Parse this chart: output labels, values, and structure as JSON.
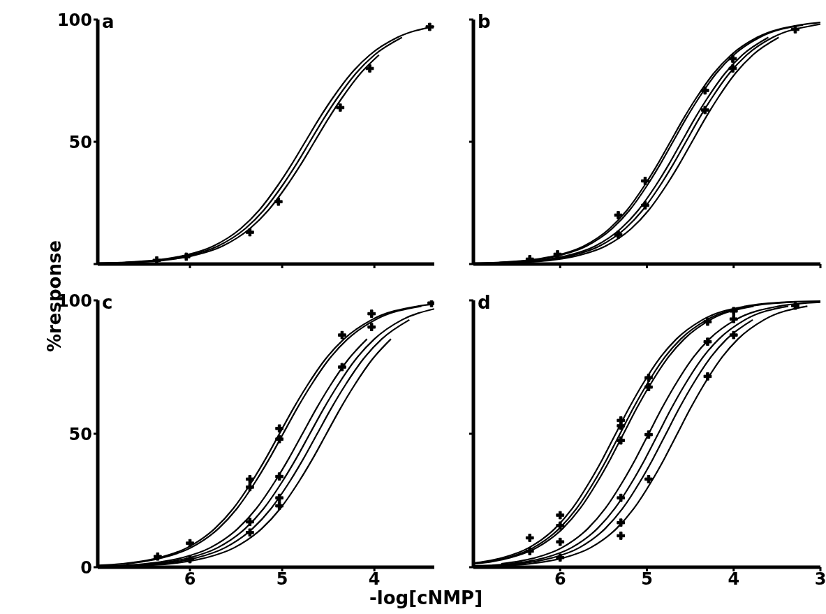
{
  "chart_data": [
    {
      "type": "line",
      "title": "a",
      "ylabel": "%response",
      "xlim": [
        7,
        3.35
      ],
      "xticks": [
        6,
        5,
        4
      ],
      "ylim": [
        0,
        100
      ],
      "yticks": [
        {
          "value": 0,
          "label": null
        },
        50,
        100
      ],
      "tick_labels": "y",
      "marker": "none",
      "series": [
        {
          "color": "#000000",
          "x": [
            7,
            6.75,
            6.45,
            6.25,
            6.05,
            5.75,
            5.45,
            5.25,
            5.05,
            4.9,
            4.75,
            4.6,
            4.45,
            4.25,
            4.05,
            3.75,
            3.35
          ],
          "values": [
            0.3,
            0.6,
            1.3,
            2.2,
            3.6,
            7.3,
            14.5,
            22,
            32,
            40.6,
            50,
            59.4,
            68,
            78,
            85.5,
            92.7,
            97.2
          ]
        },
        {
          "color": "#000000",
          "x": [
            6.7,
            6.4,
            6.2,
            6,
            5.7,
            5.4,
            5.2,
            5,
            4.85,
            4.7,
            4.55,
            4.4,
            4.2,
            4,
            3.7
          ],
          "values": [
            0.6,
            1.3,
            2.2,
            3.6,
            7.3,
            14.5,
            22,
            32,
            40.6,
            50,
            59.4,
            68,
            78,
            85.5,
            92.7
          ]
        },
        {
          "color": "#000000",
          "x": [
            7,
            6.65,
            6.35,
            6.15,
            5.95,
            5.65,
            5.35,
            5.15,
            4.95,
            4.8,
            4.65,
            4.5,
            4.35,
            4.15,
            3.95
          ],
          "values": [
            0.3,
            0.6,
            1.3,
            2.2,
            3.6,
            7.3,
            14.5,
            22,
            32,
            40.6,
            50,
            59.4,
            68,
            78,
            85.5
          ]
        },
        {
          "type": "scatter",
          "marker": "cross",
          "color": "#000000",
          "x": [
            6.36,
            6.04,
            5.35,
            5.04,
            4.37,
            4.05,
            3.4
          ],
          "values": [
            1.5,
            3,
            13,
            25.5,
            64,
            80,
            97
          ]
        }
      ]
    },
    {
      "type": "line",
      "title": "b",
      "xlim": [
        7,
        3
      ],
      "xticks": [
        6,
        5,
        4,
        3
      ],
      "ylim": [
        0,
        100
      ],
      "yticks": [
        0,
        50,
        100
      ],
      "tick_labels": false,
      "marker": "none",
      "series": [
        {
          "color": "#000000",
          "x": [
            7,
            6.73,
            6.43,
            6.23,
            6.03,
            5.73,
            5.43,
            5.23,
            5.03,
            4.88,
            4.73,
            4.58,
            4.43,
            4.23,
            4.03,
            3.73,
            3.23,
            3
          ],
          "values": [
            0.3,
            0.6,
            1.3,
            2.2,
            3.6,
            7.3,
            14.5,
            22,
            32,
            40.6,
            50,
            59.4,
            68,
            78,
            85.5,
            92.7,
            97.8,
            98.8
          ]
        },
        {
          "color": "#000000",
          "x": [
            6.7,
            6.4,
            6.2,
            6,
            5.7,
            5.4,
            5.2,
            5,
            4.85,
            4.7,
            4.55,
            4.4,
            4.2,
            4,
            3.7,
            3.2
          ],
          "values": [
            0.6,
            1.3,
            2.2,
            3.6,
            7.3,
            14.5,
            22,
            32,
            40.6,
            50,
            59.4,
            68,
            78,
            85.5,
            92.7,
            97.8
          ]
        },
        {
          "color": "#000000",
          "x": [
            7,
            6.6,
            6.3,
            6.1,
            5.9,
            5.6,
            5.3,
            5.1,
            4.9,
            4.75,
            4.6,
            4.45,
            4.3,
            4.1,
            3.9,
            3.6
          ],
          "values": [
            0.2,
            0.6,
            1.3,
            2.2,
            3.6,
            7.3,
            14.5,
            22,
            32,
            40.6,
            50,
            59.4,
            68,
            78,
            85.5,
            92.7
          ]
        },
        {
          "color": "#000000",
          "x": [
            6.55,
            6.25,
            6.05,
            5.85,
            5.55,
            5.25,
            5.05,
            4.85,
            4.7,
            4.55,
            4.4,
            4.25,
            4.05,
            3.85,
            3.55,
            3.05,
            3
          ],
          "values": [
            0.6,
            1.3,
            2.2,
            3.6,
            7.3,
            14.5,
            22,
            32,
            40.6,
            50,
            59.4,
            68,
            78,
            85.5,
            92.7,
            97.8,
            98.1
          ]
        },
        {
          "color": "#000000",
          "x": [
            7,
            6.48,
            6.18,
            5.98,
            5.78,
            5.48,
            5.18,
            4.98,
            4.78,
            4.63,
            4.48,
            4.33,
            4.18,
            3.98,
            3.78,
            3.48
          ],
          "values": [
            0.2,
            0.6,
            1.3,
            2.2,
            3.6,
            7.3,
            14.5,
            22,
            32,
            40.6,
            50,
            59.4,
            68,
            78,
            85.5,
            92.7
          ]
        },
        {
          "type": "scatter",
          "marker": "cross",
          "color": "#000000",
          "x": [
            6.35,
            6.03,
            5.33,
            5.33,
            5.02,
            5.02,
            4.33,
            4.33,
            4.01,
            4.01,
            3.29
          ],
          "values": [
            2,
            4,
            20,
            12,
            34,
            24,
            71,
            63,
            84,
            80,
            96
          ]
        }
      ]
    },
    {
      "type": "line",
      "title": "c",
      "xlabel": "-log[cNMP]",
      "xlim": [
        7,
        3.35
      ],
      "xticks": [
        6,
        5,
        4
      ],
      "ylim": [
        0,
        100
      ],
      "yticks": [
        0,
        50,
        100
      ],
      "marker": "none",
      "series": [
        {
          "color": "#000000",
          "x": [
            7,
            6.73,
            6.53,
            6.33,
            6.03,
            5.73,
            5.53,
            5.33,
            5.18,
            5.03,
            4.88,
            4.73,
            4.53,
            4.33,
            4.03,
            3.53,
            3.35
          ],
          "values": [
            0.7,
            1.3,
            2.2,
            3.6,
            7.3,
            14.5,
            22,
            32,
            40.6,
            50,
            59.4,
            68,
            78,
            85.5,
            92.7,
            97.8,
            98.6
          ]
        },
        {
          "color": "#000000",
          "x": [
            6.69,
            6.49,
            6.29,
            5.99,
            5.69,
            5.49,
            5.29,
            5.14,
            4.99,
            4.84,
            4.69,
            4.49,
            4.29,
            3.99,
            3.49
          ],
          "values": [
            1.3,
            2.2,
            3.6,
            7.3,
            14.5,
            22,
            32,
            40.6,
            50,
            59.4,
            68,
            78,
            85.5,
            92.7,
            97.8
          ]
        },
        {
          "color": "#000000",
          "x": [
            7,
            6.78,
            6.48,
            6.28,
            6.08,
            5.78,
            5.48,
            5.28,
            5.08,
            4.93,
            4.78,
            4.63,
            4.48,
            4.28,
            4.08
          ],
          "values": [
            0.4,
            0.6,
            1.3,
            2.2,
            3.6,
            7.3,
            14.5,
            22,
            32,
            40.6,
            50,
            59.4,
            68,
            78,
            85.5
          ]
        },
        {
          "color": "#000000",
          "x": [
            6.7,
            6.4,
            6.2,
            6,
            5.7,
            5.4,
            5.2,
            5,
            4.85,
            4.7,
            4.55,
            4.4,
            4.2,
            4,
            3.7,
            3.35
          ],
          "values": [
            0.6,
            1.3,
            2.2,
            3.6,
            7.3,
            14.5,
            22,
            32,
            40.6,
            50,
            59.4,
            68,
            78,
            85.5,
            92.7,
            96.8
          ]
        },
        {
          "color": "#000000",
          "x": [
            7,
            6.62,
            6.32,
            6.12,
            5.92,
            5.62,
            5.32,
            5.12,
            4.92,
            4.77,
            4.62,
            4.47,
            4.32,
            4.12,
            3.92,
            3.62
          ],
          "values": [
            0.2,
            0.6,
            1.3,
            2.2,
            3.6,
            7.3,
            14.5,
            22,
            32,
            40.6,
            50,
            59.4,
            68,
            78,
            85.5,
            92.7
          ]
        },
        {
          "color": "#000000",
          "x": [
            6.52,
            6.22,
            6.02,
            5.82,
            5.52,
            5.22,
            5.02,
            4.82,
            4.67,
            4.52,
            4.37,
            4.22,
            4.02,
            3.82
          ],
          "values": [
            0.6,
            1.3,
            2.2,
            3.6,
            7.3,
            14.5,
            22,
            32,
            40.6,
            50,
            59.4,
            68,
            78,
            85.5
          ]
        },
        {
          "type": "scatter",
          "marker": "cross",
          "color": "#000000",
          "x": [
            6.35,
            6,
            6,
            5.35,
            5.35,
            5.35,
            5.35,
            5.03,
            5.03,
            5.03,
            5.03,
            5.03,
            4.35,
            4.35,
            4.03,
            4.03,
            3.38
          ],
          "values": [
            4,
            9,
            3,
            33,
            30,
            17,
            13,
            52,
            48,
            34,
            26,
            23,
            87,
            75,
            95,
            90,
            99
          ]
        }
      ]
    },
    {
      "type": "line",
      "title": "d",
      "xlim": [
        7,
        3
      ],
      "xticks": [
        6,
        5,
        4,
        3
      ],
      "ylim": [
        0,
        100
      ],
      "yticks": [
        0,
        50,
        100
      ],
      "tick_labels": "x",
      "marker": "none",
      "series": [
        {
          "color": "#000000",
          "x": [
            7,
            6.86,
            6.66,
            6.36,
            6.06,
            5.86,
            5.66,
            5.51,
            5.36,
            5.21,
            5.06,
            4.86,
            4.66,
            4.36,
            3.86,
            3.36,
            3
          ],
          "values": [
            1.5,
            2.2,
            3.6,
            7.3,
            14.5,
            22,
            32,
            40.6,
            50,
            59.4,
            68,
            78,
            85.5,
            92.7,
            97.8,
            99.4,
            99.7
          ]
        },
        {
          "color": "#000000",
          "x": [
            6.81,
            6.61,
            6.31,
            6.01,
            5.81,
            5.61,
            5.46,
            5.31,
            5.16,
            5.01,
            4.81,
            4.61,
            4.31,
            3.81,
            3.31
          ],
          "values": [
            2.2,
            3.6,
            7.3,
            14.5,
            22,
            32,
            40.6,
            50,
            59.4,
            68,
            78,
            85.5,
            92.7,
            97.8,
            99.4
          ]
        },
        {
          "color": "#000000",
          "x": [
            7,
            6.77,
            6.57,
            6.27,
            5.97,
            5.77,
            5.57,
            5.42,
            5.27,
            5.12,
            4.97,
            4.77,
            4.57,
            4.27,
            3.77
          ],
          "values": [
            1.2,
            2.2,
            3.6,
            7.3,
            14.5,
            22,
            32,
            40.6,
            50,
            59.4,
            68,
            78,
            85.5,
            92.7,
            97.8
          ]
        },
        {
          "color": "#000000",
          "x": [
            6.68,
            6.48,
            6.28,
            5.98,
            5.68,
            5.48,
            5.28,
            5.13,
            4.98,
            4.83,
            4.68,
            4.48,
            4.28,
            3.98,
            3.48,
            3
          ],
          "values": [
            1.3,
            2.2,
            3.6,
            7.3,
            14.5,
            22,
            32,
            40.6,
            50,
            59.4,
            68,
            78,
            85.5,
            92.7,
            97.8,
            99.3
          ]
        },
        {
          "color": "#000000",
          "x": [
            7,
            6.87,
            6.57,
            6.37,
            6.17,
            5.87,
            5.57,
            5.37,
            5.17,
            5.02,
            4.87,
            4.72,
            4.57,
            4.37,
            4.17,
            3.87,
            3.37
          ],
          "values": [
            0.5,
            0.6,
            1.3,
            2.2,
            3.6,
            7.3,
            14.5,
            22,
            32,
            40.6,
            50,
            59.4,
            68,
            78,
            85.5,
            92.7,
            97.8
          ]
        },
        {
          "color": "#000000",
          "x": [
            6.78,
            6.48,
            6.28,
            6.08,
            5.78,
            5.48,
            5.28,
            5.08,
            4.93,
            4.78,
            4.63,
            4.48,
            4.28,
            4.08,
            3.78
          ],
          "values": [
            0.6,
            1.3,
            2.2,
            3.6,
            7.3,
            14.5,
            22,
            32,
            40.6,
            50,
            59.4,
            68,
            78,
            85.5,
            92.7
          ]
        },
        {
          "color": "#000000",
          "x": [
            7,
            6.65,
            6.35,
            6.15,
            5.95,
            5.65,
            5.35,
            5.15,
            4.95,
            4.8,
            4.65,
            4.5,
            4.35,
            4.15,
            3.95,
            3.65,
            3.15
          ],
          "values": [
            0.3,
            0.6,
            1.3,
            2.2,
            3.6,
            7.3,
            14.5,
            22,
            32,
            40.6,
            50,
            59.4,
            68,
            78,
            85.5,
            92.7,
            97.8
          ]
        },
        {
          "type": "scatter",
          "marker": "cross",
          "color": "#000000",
          "x": [
            6.35,
            6.35,
            6,
            6,
            6,
            6,
            5.3,
            5.3,
            5.3,
            5.3,
            5.3,
            5.3,
            4.98,
            4.98,
            4.98,
            4.98,
            4.3,
            4.3,
            4.3,
            4,
            4,
            4,
            3.29
          ],
          "values": [
            11,
            6,
            19.5,
            15.6,
            9.5,
            3.6,
            55,
            53,
            47.5,
            26,
            16.7,
            11.8,
            71,
            67.5,
            49.7,
            33,
            92,
            84.5,
            71.5,
            96,
            93,
            87,
            98
          ]
        }
      ]
    }
  ]
}
